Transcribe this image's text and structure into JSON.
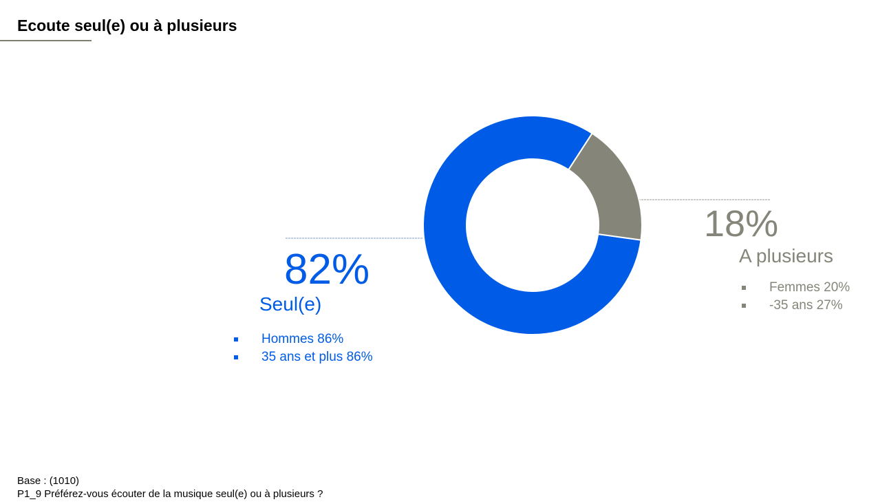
{
  "title": "Ecoute seul(e) ou à plusieurs",
  "colors": {
    "seul": "#005ce6",
    "plusieurs": "#85857a"
  },
  "chart_data": {
    "type": "pie",
    "donut": true,
    "slices": [
      {
        "label": "Seul(e)",
        "value": 82,
        "value_label": "82%",
        "color": "#005ce6",
        "details": [
          "Hommes 86%",
          "35 ans et plus 86%"
        ]
      },
      {
        "label": "A plusieurs",
        "value": 18,
        "value_label": "18%",
        "color": "#85857a",
        "details": [
          "Femmes 20%",
          "-35 ans 27%"
        ]
      }
    ]
  },
  "footer": {
    "base": "Base : (1010)",
    "question": "P1_9 Préférez-vous écouter de la musique seul(e) ou à plusieurs ?"
  }
}
